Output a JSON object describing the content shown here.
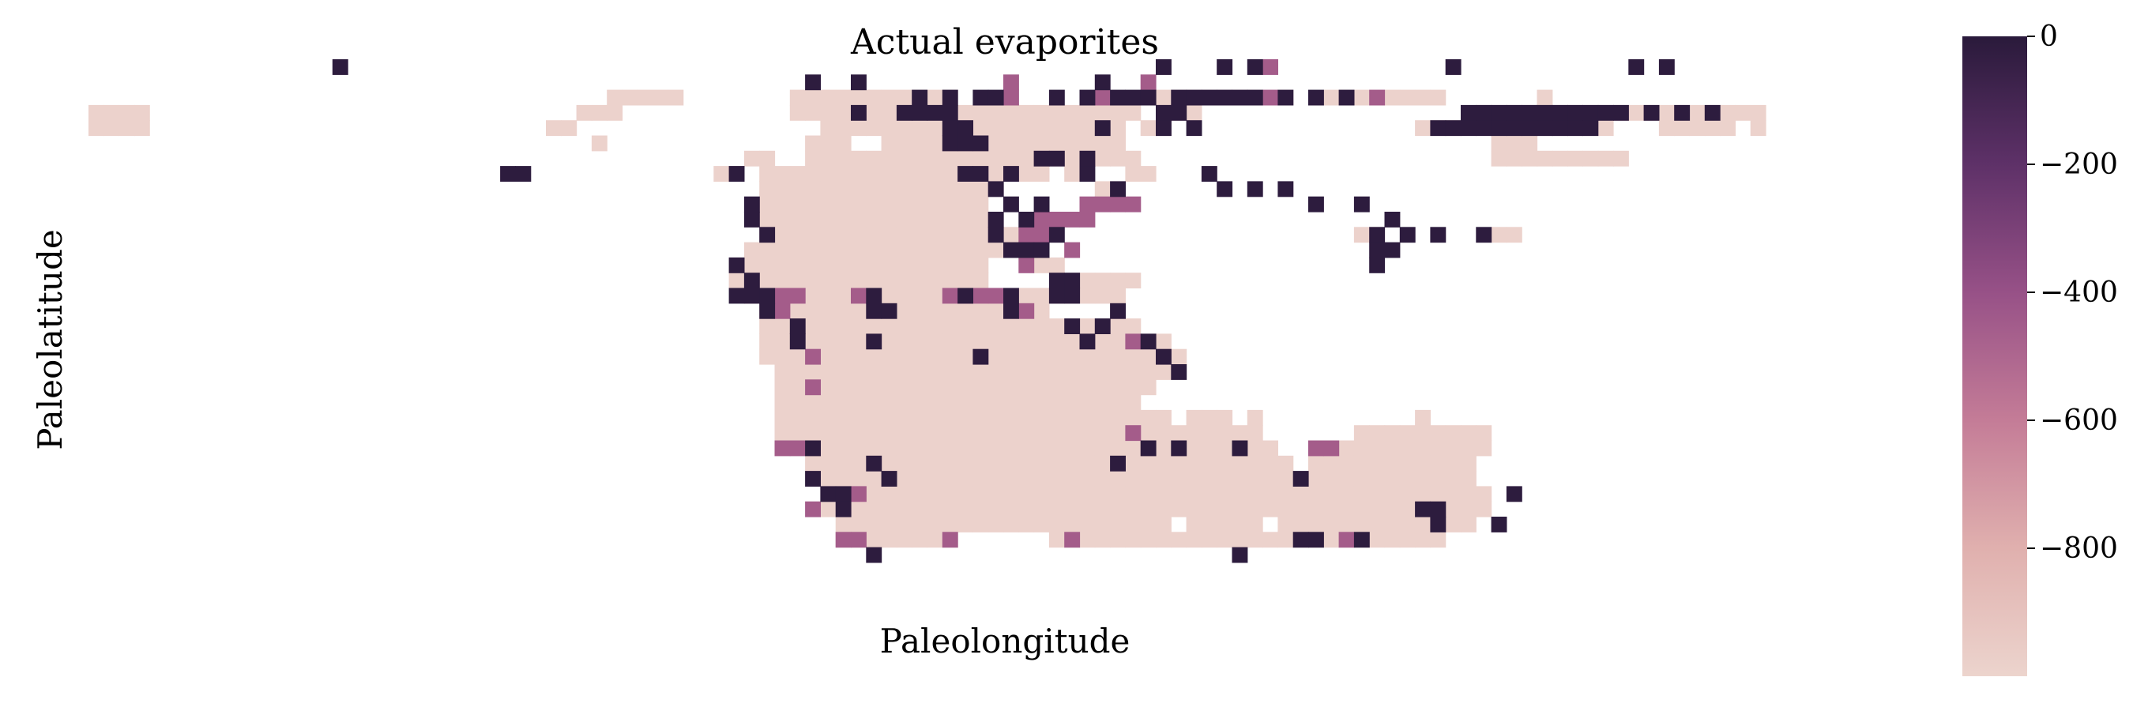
{
  "chart_data": {
    "type": "heatmap",
    "title": "Actual evaporites",
    "xlabel": "Paleolongitude",
    "ylabel": "Paleolatitude",
    "colorbar": {
      "ticks": [
        0,
        -200,
        -400,
        -600,
        -800
      ],
      "tick_labels": [
        "0",
        "−200",
        "−400",
        "−600",
        "−800"
      ],
      "range": [
        -1000,
        0
      ],
      "colors": [
        "#ecd4cd",
        "#e0b0ae",
        "#c47c97",
        "#975187",
        "#5e3168",
        "#2a1a3b"
      ]
    },
    "grid": {
      "cols": 120,
      "rows": 36,
      "value_scale": {
        "background": -1000,
        "medium": -500,
        "evaporite": 0
      },
      "land_runs": [
        [
          [
            34,
            38
          ],
          [
            46,
            56
          ],
          [
            69,
            78
          ],
          [
            81,
            88
          ],
          [
            95,
            95
          ]
        ],
        [
          [
            0,
            3
          ],
          [
            32,
            34
          ],
          [
            46,
            68
          ],
          [
            71,
            72
          ],
          [
            91,
            109
          ]
        ],
        [
          [
            0,
            3
          ],
          [
            30,
            31
          ],
          [
            48,
            67
          ],
          [
            69,
            70
          ],
          [
            87,
            89
          ],
          [
            93,
            99
          ],
          [
            103,
            107
          ],
          [
            109,
            109
          ]
        ],
        [
          [
            33,
            33
          ],
          [
            47,
            49
          ],
          [
            52,
            67
          ],
          [
            92,
            94
          ]
        ],
        [
          [
            43,
            44
          ],
          [
            47,
            68
          ],
          [
            92,
            100
          ]
        ],
        [
          [
            41,
            42
          ],
          [
            44,
            62
          ],
          [
            64,
            64
          ],
          [
            68,
            69
          ]
        ],
        [
          [
            44,
            59
          ],
          [
            66,
            67
          ]
        ],
        [
          [
            44,
            58
          ]
        ],
        [
          [
            44,
            59
          ]
        ],
        [
          [
            44,
            60
          ],
          [
            62,
            62
          ],
          [
            83,
            84
          ],
          [
            92,
            93
          ]
        ],
        [
          [
            43,
            59
          ],
          [
            64,
            64
          ]
        ],
        [
          [
            42,
            58
          ],
          [
            62,
            63
          ]
        ],
        [
          [
            42,
            58
          ],
          [
            64,
            68
          ]
        ],
        [
          [
            43,
            58
          ],
          [
            60,
            67
          ]
        ],
        [
          [
            44,
            62
          ]
        ],
        [
          [
            44,
            68
          ]
        ],
        [
          [
            44,
            70
          ]
        ],
        [
          [
            44,
            71
          ]
        ],
        [
          [
            45,
            70
          ]
        ],
        [
          [
            45,
            69
          ]
        ],
        [
          [
            45,
            68
          ]
        ],
        [
          [
            45,
            70
          ],
          [
            72,
            74
          ],
          [
            76,
            76
          ],
          [
            87,
            87
          ]
        ],
        [
          [
            45,
            76
          ],
          [
            83,
            91
          ]
        ],
        [
          [
            47,
            77
          ],
          [
            80,
            91
          ]
        ],
        [
          [
            47,
            78
          ],
          [
            80,
            90
          ]
        ],
        [
          [
            48,
            90
          ]
        ],
        [
          [
            48,
            91
          ]
        ],
        [
          [
            48,
            91
          ]
        ],
        [
          [
            49,
            70
          ],
          [
            72,
            76
          ],
          [
            78,
            90
          ]
        ],
        [
          [
            49,
            56
          ],
          [
            63,
            88
          ]
        ]
      ],
      "evaporite_cells": [
        [
          0,
          16
        ],
        [
          0,
          70
        ],
        [
          0,
          74
        ],
        [
          0,
          76
        ],
        [
          0,
          89
        ],
        [
          0,
          101
        ],
        [
          0,
          103
        ],
        [
          1,
          47
        ],
        [
          1,
          50
        ],
        [
          1,
          66
        ],
        [
          2,
          54
        ],
        [
          2,
          56
        ],
        [
          2,
          58
        ],
        [
          2,
          59
        ],
        [
          2,
          63
        ],
        [
          2,
          65
        ],
        [
          2,
          67
        ],
        [
          2,
          68
        ],
        [
          2,
          69
        ],
        [
          2,
          71
        ],
        [
          2,
          72
        ],
        [
          2,
          73
        ],
        [
          2,
          74
        ],
        [
          2,
          75
        ],
        [
          2,
          76
        ],
        [
          2,
          78
        ],
        [
          2,
          80
        ],
        [
          2,
          82
        ],
        [
          3,
          50
        ],
        [
          3,
          53
        ],
        [
          3,
          54
        ],
        [
          3,
          55
        ],
        [
          3,
          56
        ],
        [
          3,
          70
        ],
        [
          3,
          71
        ],
        [
          3,
          90
        ],
        [
          3,
          91
        ],
        [
          3,
          92
        ],
        [
          3,
          93
        ],
        [
          3,
          94
        ],
        [
          3,
          95
        ],
        [
          3,
          96
        ],
        [
          3,
          97
        ],
        [
          3,
          98
        ],
        [
          3,
          99
        ],
        [
          3,
          100
        ],
        [
          3,
          102
        ],
        [
          3,
          104
        ],
        [
          3,
          106
        ],
        [
          4,
          56
        ],
        [
          4,
          57
        ],
        [
          4,
          66
        ],
        [
          4,
          70
        ],
        [
          4,
          72
        ],
        [
          4,
          88
        ],
        [
          4,
          89
        ],
        [
          4,
          90
        ],
        [
          4,
          91
        ],
        [
          4,
          92
        ],
        [
          4,
          93
        ],
        [
          4,
          94
        ],
        [
          4,
          95
        ],
        [
          4,
          96
        ],
        [
          4,
          97
        ],
        [
          4,
          98
        ],
        [
          5,
          56
        ],
        [
          5,
          57
        ],
        [
          5,
          58
        ],
        [
          6,
          62
        ],
        [
          6,
          63
        ],
        [
          6,
          65
        ],
        [
          7,
          27
        ],
        [
          7,
          28
        ],
        [
          7,
          42
        ],
        [
          7,
          57
        ],
        [
          7,
          58
        ],
        [
          7,
          60
        ],
        [
          7,
          65
        ],
        [
          7,
          73
        ],
        [
          8,
          59
        ],
        [
          8,
          67
        ],
        [
          8,
          74
        ],
        [
          8,
          76
        ],
        [
          8,
          78
        ],
        [
          9,
          43
        ],
        [
          9,
          60
        ],
        [
          9,
          62
        ],
        [
          9,
          80
        ],
        [
          9,
          83
        ],
        [
          10,
          43
        ],
        [
          10,
          59
        ],
        [
          10,
          61
        ],
        [
          10,
          85
        ],
        [
          11,
          44
        ],
        [
          11,
          59
        ],
        [
          11,
          63
        ],
        [
          11,
          84
        ],
        [
          11,
          86
        ],
        [
          11,
          88
        ],
        [
          11,
          91
        ],
        [
          12,
          60
        ],
        [
          12,
          61
        ],
        [
          12,
          62
        ],
        [
          12,
          84
        ],
        [
          12,
          85
        ],
        [
          13,
          42
        ],
        [
          13,
          84
        ],
        [
          14,
          43
        ],
        [
          14,
          63
        ],
        [
          14,
          64
        ],
        [
          15,
          42
        ],
        [
          15,
          43
        ],
        [
          15,
          44
        ],
        [
          15,
          51
        ],
        [
          15,
          57
        ],
        [
          15,
          60
        ],
        [
          15,
          63
        ],
        [
          15,
          64
        ],
        [
          16,
          44
        ],
        [
          16,
          51
        ],
        [
          16,
          52
        ],
        [
          16,
          60
        ],
        [
          16,
          67
        ],
        [
          17,
          46
        ],
        [
          17,
          64
        ],
        [
          17,
          66
        ],
        [
          18,
          46
        ],
        [
          18,
          51
        ],
        [
          18,
          65
        ],
        [
          18,
          69
        ],
        [
          19,
          58
        ],
        [
          19,
          70
        ],
        [
          20,
          71
        ],
        [
          25,
          47
        ],
        [
          25,
          69
        ],
        [
          25,
          71
        ],
        [
          25,
          75
        ],
        [
          26,
          51
        ],
        [
          26,
          67
        ],
        [
          27,
          47
        ],
        [
          27,
          52
        ],
        [
          27,
          79
        ],
        [
          28,
          48
        ],
        [
          28,
          49
        ],
        [
          28,
          93
        ],
        [
          29,
          49
        ],
        [
          29,
          87
        ],
        [
          29,
          88
        ],
        [
          30,
          88
        ],
        [
          30,
          92
        ],
        [
          31,
          79
        ],
        [
          31,
          80
        ],
        [
          31,
          83
        ],
        [
          32,
          51
        ],
        [
          32,
          75
        ]
      ],
      "medium_cells": [
        [
          2,
          60
        ],
        [
          2,
          66
        ],
        [
          2,
          77
        ],
        [
          2,
          84
        ],
        [
          1,
          60
        ],
        [
          1,
          69
        ],
        [
          0,
          77
        ],
        [
          9,
          65
        ],
        [
          9,
          66
        ],
        [
          9,
          67
        ],
        [
          9,
          68
        ],
        [
          10,
          62
        ],
        [
          10,
          63
        ],
        [
          10,
          64
        ],
        [
          10,
          65
        ],
        [
          11,
          61
        ],
        [
          11,
          62
        ],
        [
          12,
          64
        ],
        [
          13,
          61
        ],
        [
          15,
          45
        ],
        [
          15,
          46
        ],
        [
          15,
          50
        ],
        [
          15,
          56
        ],
        [
          15,
          57
        ],
        [
          15,
          58
        ],
        [
          15,
          59
        ],
        [
          16,
          45
        ],
        [
          16,
          61
        ],
        [
          18,
          68
        ],
        [
          19,
          47
        ],
        [
          21,
          47
        ],
        [
          25,
          45
        ],
        [
          25,
          46
        ],
        [
          25,
          80
        ],
        [
          25,
          81
        ],
        [
          24,
          68
        ],
        [
          28,
          50
        ],
        [
          29,
          47
        ],
        [
          31,
          82
        ],
        [
          31,
          64
        ],
        [
          31,
          56
        ],
        [
          31,
          49
        ],
        [
          31,
          50
        ]
      ],
      "light_cells": [
        [
          1,
          3
        ],
        [
          0,
          33
        ],
        [
          2,
          33
        ],
        [
          3,
          31
        ],
        [
          8,
          32
        ],
        [
          9,
          31
        ],
        [
          13,
          42
        ],
        [
          14,
          42
        ],
        [
          15,
          42
        ],
        [
          1,
          46
        ],
        [
          15,
          50
        ],
        [
          15,
          47
        ],
        [
          30,
          92
        ],
        [
          31,
          92
        ],
        [
          30,
          60
        ],
        [
          30,
          61
        ]
      ]
    }
  }
}
